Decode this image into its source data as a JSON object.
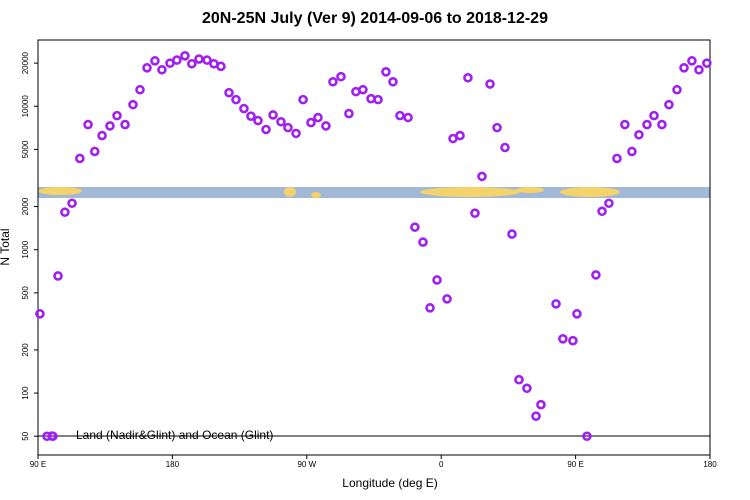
{
  "chart_data": {
    "type": "scatter",
    "title": "20N-25N July (Ver 9)   2014-09-06 to 2018-12-29",
    "xlabel": "Longitude (deg E)",
    "ylabel": "N Total",
    "ylog": true,
    "grid": false,
    "legend": "lower left",
    "xlim": [
      90,
      540
    ],
    "ylim": [
      37,
      29000
    ],
    "xticks": [
      {
        "value": 90,
        "label": "90 E"
      },
      180,
      {
        "value": 270,
        "label": "90 W"
      },
      {
        "value": 360,
        "label": "0"
      },
      {
        "value": 450,
        "label": "90 E"
      },
      {
        "value": 540,
        "label": "180"
      }
    ],
    "yticks": [
      50,
      100,
      200,
      500,
      1000,
      2000,
      5000,
      10000,
      20000
    ],
    "series": [
      {
        "name": "Land (Nadir&Glint) and Ocean (Glint)",
        "color": "#a020f0",
        "x": [
          91.3,
          96,
          100,
          103.4,
          108,
          112.8,
          118,
          123.5,
          128,
          132.9,
          138.2,
          142.9,
          148.3,
          153.6,
          158.3,
          163,
          168.3,
          173,
          178.4,
          183,
          188.4,
          193,
          197.8,
          203.2,
          207.8,
          212.5,
          217.9,
          222.6,
          227.9,
          232.6,
          237.3,
          242.7,
          247.4,
          252.7,
          257.4,
          262.8,
          267.5,
          272.8,
          277.5,
          282.8,
          287.5,
          292.9,
          298.2,
          302.9,
          307.6,
          313,
          317.7,
          323,
          327.7,
          332.4,
          337.8,
          342.4,
          347.8,
          352.5,
          357.2,
          363.9,
          367.9,
          372.6,
          377.9,
          382.6,
          387.3,
          392.7,
          397.4,
          402.7,
          407.4,
          412.1,
          417.4,
          423.5,
          426.8,
          436.9,
          441.5,
          448.2,
          450.9,
          457.6,
          463.6,
          467.7,
          472.3,
          477.7,
          483,
          487.7,
          492.4,
          497.8,
          502.5,
          507.8,
          512.5,
          517.9,
          522.6,
          527.9,
          532.6,
          537.9
        ],
        "values": [
          357,
          50,
          50,
          656,
          1825,
          2108,
          4328,
          7460,
          4842,
          6250,
          7300,
          8610,
          7460,
          10270,
          13050,
          18550,
          20750,
          17980,
          20000,
          21000,
          22500,
          19800,
          21350,
          21000,
          19800,
          19000,
          12440,
          11130,
          9640,
          8530,
          7950,
          6890,
          8700,
          7800,
          7100,
          6470,
          11130,
          7700,
          8350,
          7300,
          14830,
          16100,
          8900,
          12650,
          13050,
          11300,
          11130,
          17400,
          14830,
          8610,
          8350,
          1436,
          1130,
          393,
          615,
          454,
          5960,
          6250,
          15810,
          1797,
          3245,
          14300,
          7100,
          5160,
          1285,
          124,
          108,
          69,
          83,
          419,
          239,
          232,
          357,
          50,
          667,
          1853,
          2108,
          4328,
          7460,
          4842,
          6330,
          7460,
          8610,
          7460,
          10270,
          13050,
          18550,
          20750,
          17980,
          20000
        ]
      }
    ]
  }
}
